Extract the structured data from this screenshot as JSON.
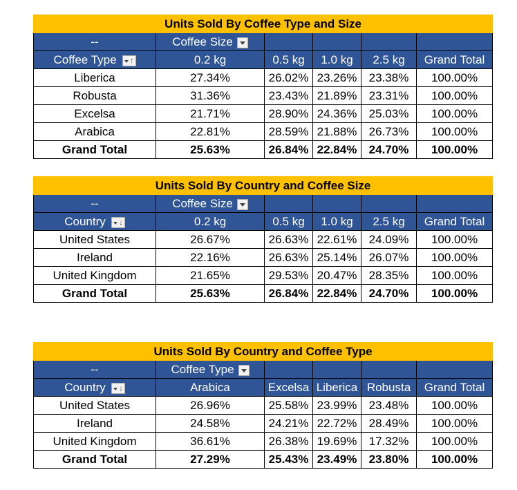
{
  "pivots": [
    {
      "title": "Units Sold By Coffee Type and Size",
      "corner": "--",
      "field": "Coffee Size",
      "row_label": "Coffee Type",
      "sort_glyph": "↑",
      "columns": [
        "0.2 kg",
        "0.5 kg",
        "1.0 kg",
        "2.5 kg",
        "Grand Total"
      ],
      "rows": [
        {
          "label": "Liberica",
          "values": [
            "27.34%",
            "26.02%",
            "23.26%",
            "23.38%",
            "100.00%"
          ]
        },
        {
          "label": "Robusta",
          "values": [
            "31.36%",
            "23.43%",
            "21.89%",
            "23.31%",
            "100.00%"
          ]
        },
        {
          "label": "Excelsa",
          "values": [
            "21.71%",
            "28.90%",
            "24.36%",
            "25.03%",
            "100.00%"
          ]
        },
        {
          "label": "Arabica",
          "values": [
            "22.81%",
            "28.59%",
            "21.88%",
            "26.73%",
            "100.00%"
          ]
        }
      ],
      "total": {
        "label": "Grand Total",
        "values": [
          "25.63%",
          "26.84%",
          "22.84%",
          "24.70%",
          "100.00%"
        ]
      }
    },
    {
      "title": "Units Sold By Country and Coffee Size",
      "corner": "--",
      "field": "Coffee Size",
      "row_label": "Country",
      "sort_glyph": "↓",
      "columns": [
        "0.2 kg",
        "0.5 kg",
        "1.0 kg",
        "2.5 kg",
        "Grand Total"
      ],
      "rows": [
        {
          "label": "United States",
          "values": [
            "26.67%",
            "26.63%",
            "22.61%",
            "24.09%",
            "100.00%"
          ]
        },
        {
          "label": "Ireland",
          "values": [
            "22.16%",
            "26.63%",
            "25.14%",
            "26.07%",
            "100.00%"
          ]
        },
        {
          "label": "United Kingdom",
          "values": [
            "21.65%",
            "29.53%",
            "20.47%",
            "28.35%",
            "100.00%"
          ]
        }
      ],
      "total": {
        "label": "Grand Total",
        "values": [
          "25.63%",
          "26.84%",
          "22.84%",
          "24.70%",
          "100.00%"
        ]
      }
    },
    {
      "title": "Units Sold By Country and Coffee Type",
      "corner": "--",
      "field": "Coffee Type",
      "row_label": "Country",
      "sort_glyph": "↓",
      "columns": [
        "Arabica",
        "Excelsa",
        "Liberica",
        "Robusta",
        "Grand Total"
      ],
      "rows": [
        {
          "label": "United States",
          "values": [
            "26.96%",
            "25.58%",
            "23.99%",
            "23.48%",
            "100.00%"
          ]
        },
        {
          "label": "Ireland",
          "values": [
            "24.58%",
            "24.21%",
            "22.72%",
            "28.49%",
            "100.00%"
          ]
        },
        {
          "label": "United Kingdom",
          "values": [
            "36.61%",
            "26.38%",
            "19.69%",
            "17.32%",
            "100.00%"
          ]
        }
      ],
      "total": {
        "label": "Grand Total",
        "values": [
          "27.29%",
          "25.43%",
          "23.49%",
          "23.80%",
          "100.00%"
        ]
      }
    }
  ],
  "colors": {
    "title_bg": "#ffc000",
    "header_bg": "#2f5597",
    "header_text": "#ffffff"
  }
}
